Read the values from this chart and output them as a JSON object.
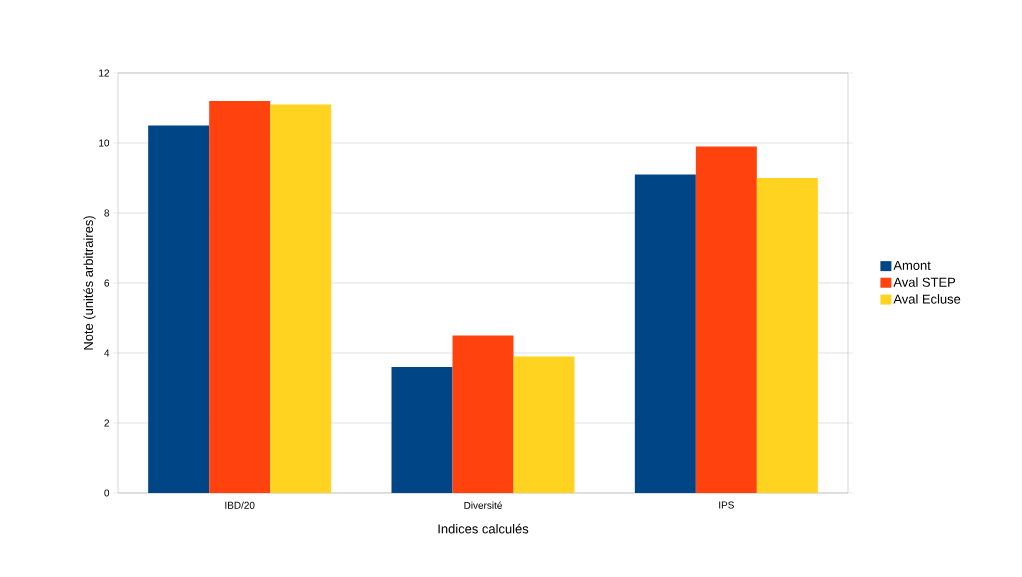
{
  "chart_data": {
    "type": "bar",
    "xlabel": "Indices calculés",
    "ylabel": "Note (unités arbitraires)",
    "categories": [
      "IBD/20",
      "Diversité",
      "IPS"
    ],
    "series": [
      {
        "name": "Amont",
        "color": "#004586",
        "values": [
          10.5,
          3.6,
          9.1
        ]
      },
      {
        "name": "Aval STEP",
        "color": "#ff420e",
        "values": [
          11.2,
          4.5,
          9.9
        ]
      },
      {
        "name": "Aval Ecluse",
        "color": "#ffd320",
        "values": [
          11.1,
          3.9,
          9.0
        ]
      }
    ],
    "ylim": [
      0,
      12
    ],
    "yticks": [
      0,
      2,
      4,
      6,
      8,
      10,
      12
    ],
    "grid": "y",
    "legend": "right"
  }
}
